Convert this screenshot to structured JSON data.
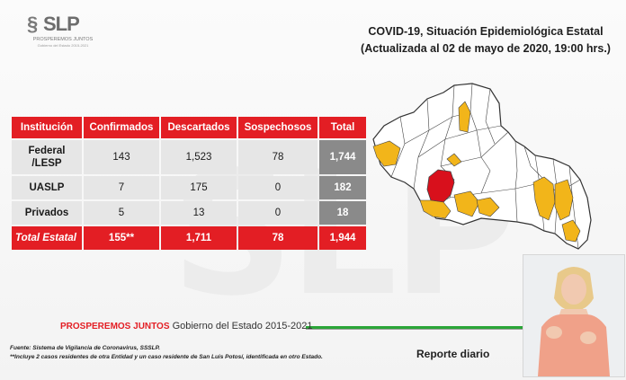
{
  "logo": {
    "brand": "SLP",
    "tagline": "PROSPEREMOS JUNTOS",
    "subline": "Gobierno del Estado 2015-2021"
  },
  "title": {
    "line1": "COVID-19, Situación Epidemiológica Estatal",
    "line2": "(Actualizada al 02 de mayo de 2020, 19:00 hrs.)"
  },
  "table": {
    "headers": [
      "Institución",
      "Confirmados",
      "Descartados",
      "Sospechosos",
      "Total"
    ],
    "rows": [
      {
        "inst": "Federal /LESP",
        "confirmados": "143",
        "descartados": "1,523",
        "sospechosos": "78",
        "total": "1,744"
      },
      {
        "inst": "UASLP",
        "confirmados": "7",
        "descartados": "175",
        "sospechosos": "0",
        "total": "182"
      },
      {
        "inst": "Privados",
        "confirmados": "5",
        "descartados": "13",
        "sospechosos": "0",
        "total": "18"
      }
    ],
    "totals": {
      "inst": "Total Estatal",
      "confirmados": "155**",
      "descartados": "1,711",
      "sospechosos": "78",
      "total": "1,944"
    }
  },
  "map": {
    "colors": {
      "none": "#ffffff",
      "low": "#f2b51a",
      "high": "#d8101c",
      "border": "#333333"
    }
  },
  "footer": {
    "tag_a": "PROSPEREMOS JUNTOS",
    "tag_b": " Gobierno del Estado 2015-2021",
    "source": "Fuente: Sistema de Vigilancia de Coronavirus, SSSLP.",
    "note": "**Incluye 2 casos residentes de otra Entidad y un caso residente de San Luis Potosí, identificada en otro Estado.",
    "daily": "Reporte diario"
  },
  "colors": {
    "accent_red": "#e31e24",
    "accent_green": "#2aa538",
    "grey_total": "#8a8a8a"
  }
}
